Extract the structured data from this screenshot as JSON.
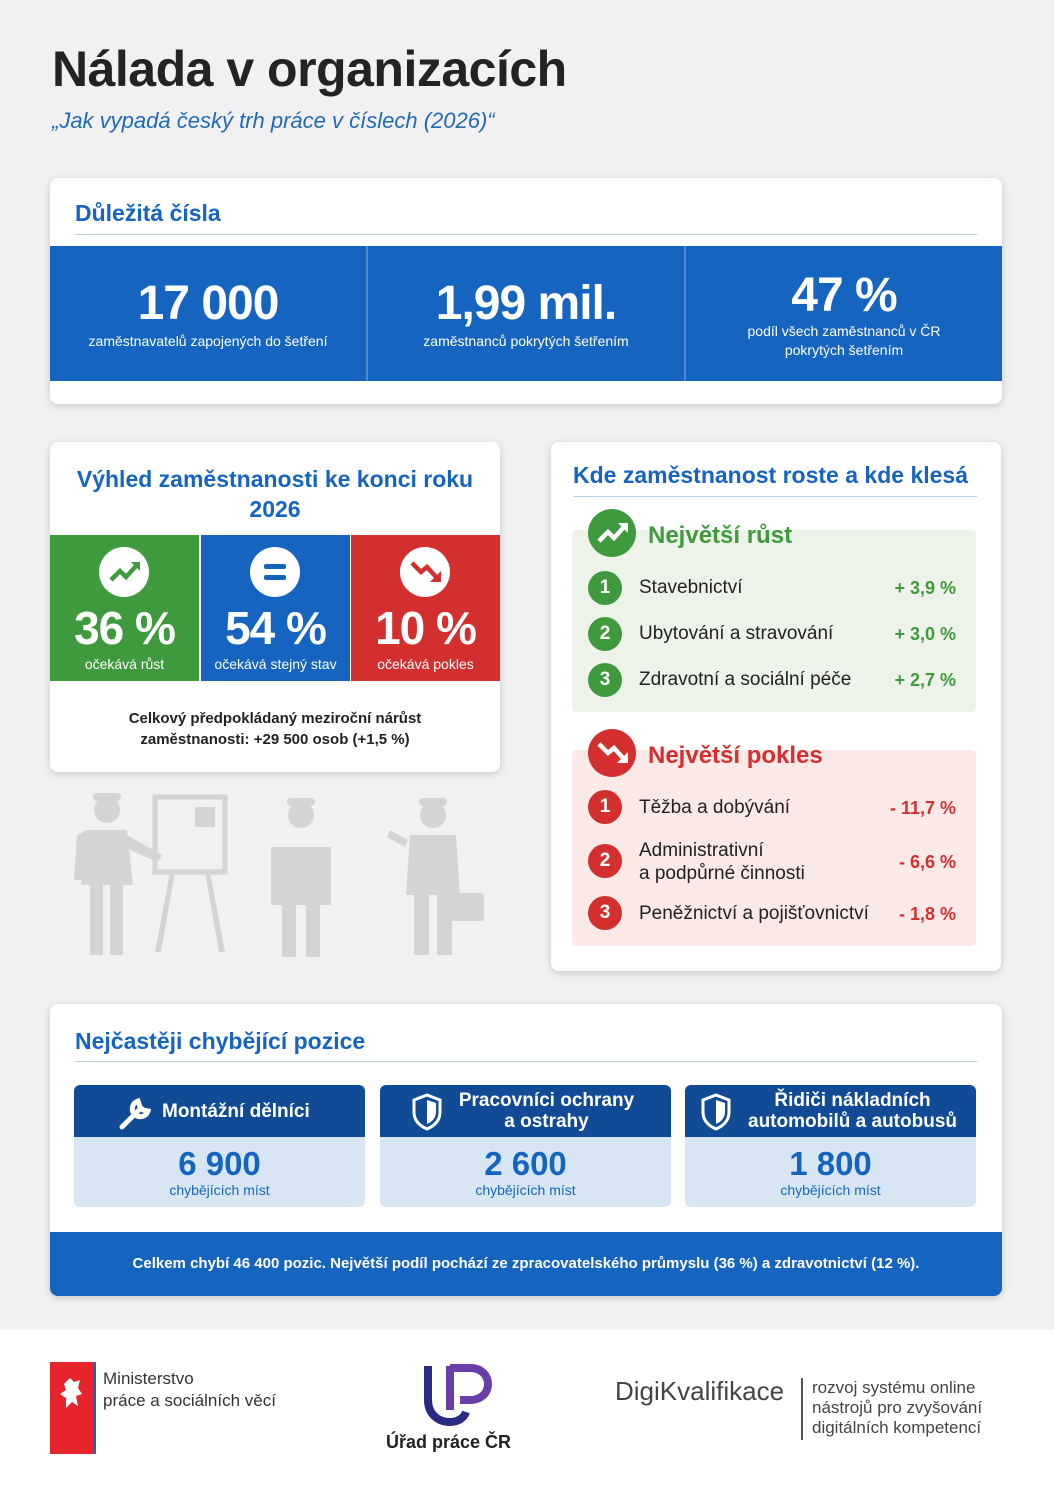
{
  "header": {
    "title": "Nálada v organizacích",
    "subtitle": "„Jak vypadá český trh práce v číslech (2026)“"
  },
  "key_numbers": {
    "title": "Důležitá čísla",
    "items": [
      {
        "value": "17 000",
        "label_lines": [
          "zaměstnavatelů zapojených do šetření"
        ]
      },
      {
        "value": "1,99 mil.",
        "label_lines": [
          "zaměstnanců pokrytých šetřením"
        ]
      },
      {
        "value": "47 %",
        "label_lines": [
          "podíl všech zaměstnanců v ČR",
          "pokrytých šetřením"
        ]
      }
    ]
  },
  "outlook": {
    "title_lines": [
      "Výhled zaměstnanosti ke konci roku",
      "2026"
    ],
    "items": [
      {
        "value": "36 %",
        "label": "očekává růst"
      },
      {
        "value": "54 %",
        "label": "očekává stejný stav"
      },
      {
        "value": "10 %",
        "label": "očekává pokles"
      }
    ],
    "note_lines": [
      "Celkový předpokládaný meziroční nárůst",
      "zaměstnanosti: +29 500 osob (+1,5 %)"
    ]
  },
  "sectors": {
    "title": "Kde zaměstnanost roste a kde klesá",
    "growth": {
      "title": "Největší růst",
      "rows": [
        {
          "rank": "1",
          "name_lines": [
            "Stavebnictví"
          ],
          "change": "+ 3,9 %"
        },
        {
          "rank": "2",
          "name_lines": [
            "Ubytování a stravování"
          ],
          "change": "+ 3,0 %"
        },
        {
          "rank": "3",
          "name_lines": [
            "Zdravotní a sociální péče"
          ],
          "change": "+ 2,7 %"
        }
      ]
    },
    "decline": {
      "title": "Největší pokles",
      "rows": [
        {
          "rank": "1",
          "name_lines": [
            "Těžba a dobývání"
          ],
          "change": "- 11,7 %"
        },
        {
          "rank": "2",
          "name_lines": [
            "Administrativní",
            "a podpůrné činnosti"
          ],
          "change": "- 6,6 %"
        },
        {
          "rank": "3",
          "name_lines": [
            "Peněžnictví a pojišťovnictví"
          ],
          "change": "- 1,8 %"
        }
      ]
    }
  },
  "shortages": {
    "title": "Nejčastěji chybějící pozice",
    "items": [
      {
        "title_lines": [
          "Montážní dělníci"
        ],
        "value": "6 900",
        "label": "chybějících míst"
      },
      {
        "title_lines": [
          "Pracovníci ochrany",
          "a ostrahy"
        ],
        "value": "2 600",
        "label": "chybějících míst"
      },
      {
        "title_lines": [
          "Řidiči nákladních",
          "automobilů a autobusů"
        ],
        "value": "1 800",
        "label": "chybějících míst"
      }
    ],
    "footer": "Celkem chybí 46 400 pozic. Největší podíl pochází ze zpracovatelského průmyslu (36 %) a zdravotnictví (12 %)."
  },
  "footer": {
    "ministry_lines": [
      "Ministerstvo",
      "práce a sociálních věcí"
    ],
    "office": "Úřad práce ČR",
    "digi": "DigiKvalifikace",
    "digi_lines": [
      "rozvoj systému online",
      "nástrojů pro zvyšování",
      "digitálních kompetencí"
    ]
  }
}
